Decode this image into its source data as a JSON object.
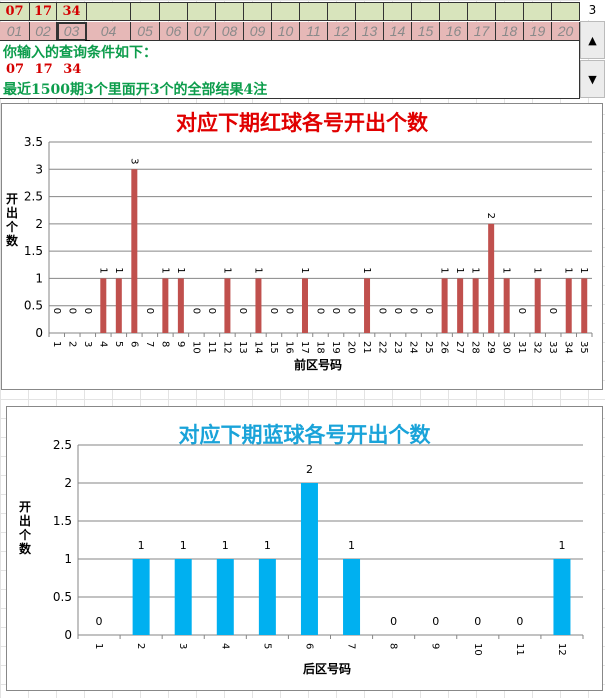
{
  "input_grid": {
    "selected_numbers": [
      "07",
      "17",
      "34"
    ],
    "green_row_cells": 20,
    "number_row": [
      "01",
      "02",
      "03",
      "04",
      "05",
      "06",
      "07",
      "08",
      "09",
      "10",
      "11",
      "12",
      "13",
      "14",
      "15",
      "16",
      "17",
      "18",
      "19",
      "20"
    ],
    "selected_cell_index": 2
  },
  "spinner": {
    "value": "3",
    "up_icon": "▲",
    "down_icon": "▼"
  },
  "info": {
    "line1": "你输入的查询条件如下：",
    "line2": "07  17  34",
    "line3": "最近1500期3个里面开3个的全部结果4注"
  },
  "colors": {
    "red_bar": "#c0504d",
    "blue_bar": "#00b0f0",
    "red_title": "#e00000",
    "blue_title": "#1aa3d9",
    "green_text": "#0d9d4c"
  },
  "chart_data": [
    {
      "type": "bar",
      "title": "对应下期红球各号开出个数",
      "xlabel": "前区号码",
      "ylabel": "开出个数",
      "ylim": [
        0,
        3.5
      ],
      "yticks": [
        0,
        0.5,
        1,
        1.5,
        2,
        2.5,
        3,
        3.5
      ],
      "grid": true,
      "categories": [
        "1",
        "2",
        "3",
        "4",
        "5",
        "6",
        "7",
        "8",
        "9",
        "10",
        "11",
        "12",
        "13",
        "14",
        "15",
        "16",
        "17",
        "18",
        "19",
        "20",
        "21",
        "22",
        "23",
        "24",
        "25",
        "26",
        "27",
        "28",
        "29",
        "30",
        "31",
        "32",
        "33",
        "34",
        "35"
      ],
      "values": [
        0,
        0,
        0,
        1,
        1,
        3,
        0,
        1,
        1,
        0,
        0,
        1,
        0,
        1,
        0,
        0,
        1,
        0,
        0,
        0,
        1,
        0,
        0,
        0,
        0,
        1,
        1,
        1,
        2,
        1,
        0,
        1,
        0,
        1,
        1
      ]
    },
    {
      "type": "bar",
      "title": "对应下期蓝球各号开出个数",
      "xlabel": "后区号码",
      "ylabel": "开出个数",
      "ylim": [
        0,
        2.5
      ],
      "yticks": [
        0,
        0.5,
        1,
        1.5,
        2,
        2.5
      ],
      "grid": true,
      "categories": [
        "1",
        "2",
        "3",
        "4",
        "5",
        "6",
        "7",
        "8",
        "9",
        "10",
        "11",
        "12"
      ],
      "values": [
        0,
        1,
        1,
        1,
        1,
        2,
        1,
        0,
        0,
        0,
        0,
        1
      ]
    }
  ]
}
